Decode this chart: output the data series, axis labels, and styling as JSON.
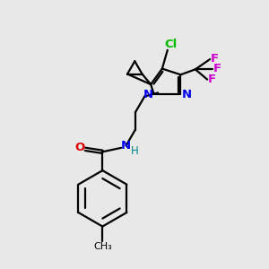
{
  "bg_color": "#e8e8e8",
  "line_color": "#000000",
  "n_color": "#0000ee",
  "o_color": "#dd0000",
  "cl_color": "#00bb00",
  "f_color": "#cc00cc",
  "h_color": "#008888",
  "line_width": 1.6,
  "fig_width": 3.0,
  "fig_height": 3.0,
  "dpi": 100,
  "xlim": [
    0,
    10
  ],
  "ylim": [
    0,
    10
  ]
}
